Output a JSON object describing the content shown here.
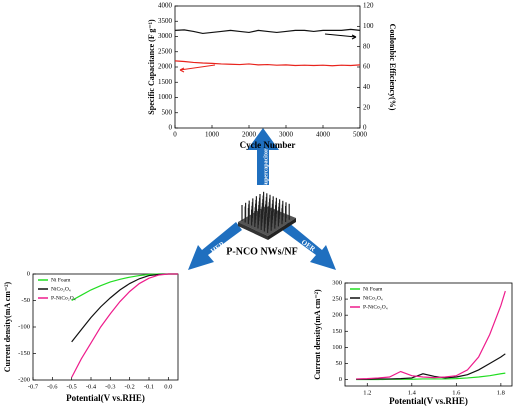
{
  "chart_data": [
    {
      "type": "line",
      "xlabel": "Cycle Number",
      "ylabel": "Specific Capacitance (F g⁻¹)",
      "y2label": "Coulombic Efficiency(%)",
      "x": [
        0,
        250,
        500,
        750,
        1000,
        1250,
        1500,
        1750,
        2000,
        2250,
        2500,
        2750,
        3000,
        3250,
        3500,
        3750,
        4000,
        4250,
        4500,
        4750,
        5000
      ],
      "series": [
        {
          "color": "#e8231c",
          "values": [
            2200,
            2180,
            2150,
            2130,
            2120,
            2100,
            2090,
            2080,
            2100,
            2070,
            2080,
            2060,
            2070,
            2050,
            2060,
            2050,
            2060,
            2040,
            2060,
            2050,
            2070
          ]
        },
        {
          "color": "#111111",
          "axis": "y2",
          "values": [
            96,
            96.5,
            95,
            93,
            94,
            95,
            96,
            95,
            94,
            96,
            95,
            94,
            95,
            96,
            96,
            95,
            96,
            96,
            96,
            97,
            96
          ]
        }
      ],
      "xlim": [
        0,
        5000
      ],
      "xticks": [
        0,
        1000,
        2000,
        3000,
        4000,
        5000
      ],
      "ylim": [
        0,
        4000
      ],
      "yticks": [
        0,
        500,
        1000,
        1500,
        2000,
        2500,
        3000,
        3500,
        4000
      ],
      "y2lim": [
        0,
        120
      ],
      "y2ticks": [
        0,
        20,
        40,
        60,
        80,
        100,
        120
      ]
    },
    {
      "type": "line",
      "xlabel": "Potential(V vs.RHE)",
      "ylabel": "Current density(mA cm⁻²)",
      "legend": "upper left",
      "x": [
        -0.5,
        -0.45,
        -0.4,
        -0.35,
        -0.3,
        -0.25,
        -0.2,
        -0.15,
        -0.1,
        -0.05,
        0,
        0.05
      ],
      "series": [
        {
          "name": "Ni Foam",
          "color": "#22dd22",
          "values": [
            -50,
            -40,
            -30,
            -22,
            -15,
            -10,
            -6,
            -3,
            -1,
            0,
            0,
            0
          ]
        },
        {
          "name": "NiCo₂O₄",
          "color": "#111111",
          "values": [
            -128,
            -105,
            -82,
            -62,
            -45,
            -30,
            -18,
            -9,
            -3,
            -1,
            0,
            0
          ]
        },
        {
          "name": "P-NiCo₂O₄",
          "color": "#ee1c8c",
          "values": [
            -195,
            -160,
            -130,
            -100,
            -75,
            -52,
            -33,
            -18,
            -8,
            -2,
            0,
            0
          ]
        }
      ],
      "xlim": [
        -0.7,
        0.05
      ],
      "xticks": [
        -0.7,
        -0.6,
        -0.5,
        -0.4,
        -0.3,
        -0.2,
        -0.1,
        {
          "value": 0,
          "label": "0.0"
        }
      ],
      "ylim": [
        -200,
        0
      ],
      "yticks": [
        0,
        -50,
        -100,
        -150,
        -200
      ]
    },
    {
      "type": "line",
      "xlabel": "Potential(V vs.RHE)",
      "ylabel": "Current density(mA cm⁻²)",
      "legend": "upper left",
      "x": [
        1.15,
        1.2,
        1.25,
        1.3,
        1.35,
        1.4,
        1.45,
        1.5,
        1.55,
        1.6,
        1.65,
        1.7,
        1.75,
        1.8,
        1.82
      ],
      "series": [
        {
          "name": "Ni Foam",
          "color": "#22dd22",
          "values": [
            0,
            0,
            0,
            1,
            1,
            1,
            2,
            2,
            2,
            3,
            5,
            8,
            12,
            18,
            20
          ]
        },
        {
          "name": "NiCo₂O₄",
          "color": "#111111",
          "values": [
            1,
            1,
            2,
            2,
            3,
            5,
            18,
            10,
            5,
            8,
            15,
            30,
            50,
            70,
            80
          ]
        },
        {
          "name": "P-NiCo₂O₄",
          "color": "#ee1c8c",
          "values": [
            2,
            3,
            5,
            8,
            25,
            12,
            8,
            6,
            8,
            12,
            30,
            70,
            140,
            230,
            275
          ]
        }
      ],
      "xlim": [
        1.1,
        1.85
      ],
      "xticks": [
        1.2,
        1.4,
        1.6,
        1.8
      ],
      "ylim": [
        -20,
        300
      ],
      "yticks": [
        0,
        50,
        100,
        150,
        200,
        250,
        300
      ]
    }
  ],
  "diagram": {
    "center": "P-NCO NWs/NF",
    "arrows": [
      "Supercapacitor",
      "HER",
      "OER"
    ]
  }
}
